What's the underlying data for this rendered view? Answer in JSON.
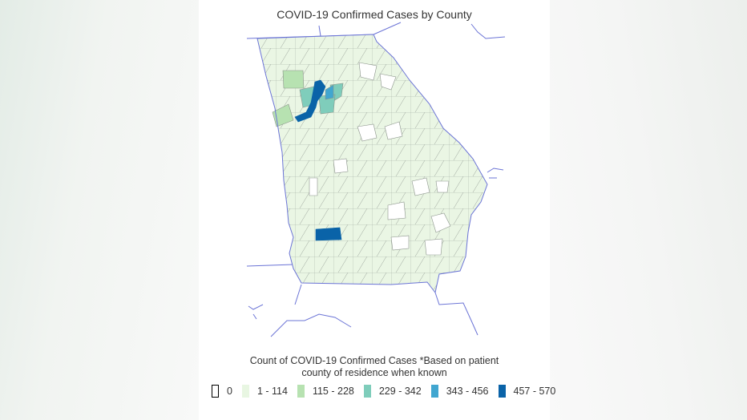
{
  "title": "COVID-19 Confirmed Cases by County",
  "legend": {
    "title_line1": "Count of COVID-19 Confirmed Cases *Based on patient",
    "title_line2": "county of residence when known",
    "items": [
      {
        "label": "0",
        "color": "#ffffff",
        "border": "#000000"
      },
      {
        "label": "1 - 114",
        "color": "#e8f6e2",
        "border": "#e8f6e2"
      },
      {
        "label": "115 - 228",
        "color": "#b7e2b1",
        "border": "#b7e2b1"
      },
      {
        "label": "229 - 342",
        "color": "#7fcdbb",
        "border": "#7fcdbb"
      },
      {
        "label": "343 - 456",
        "color": "#41a6d0",
        "border": "#41a6d0"
      },
      {
        "label": "457 - 570",
        "color": "#0a63a8",
        "border": "#0a63a8"
      }
    ]
  },
  "colors": {
    "state_fill": "#eaf6e4",
    "county_border": "#7f8a7f",
    "state_outline": "#6b74d6"
  }
}
